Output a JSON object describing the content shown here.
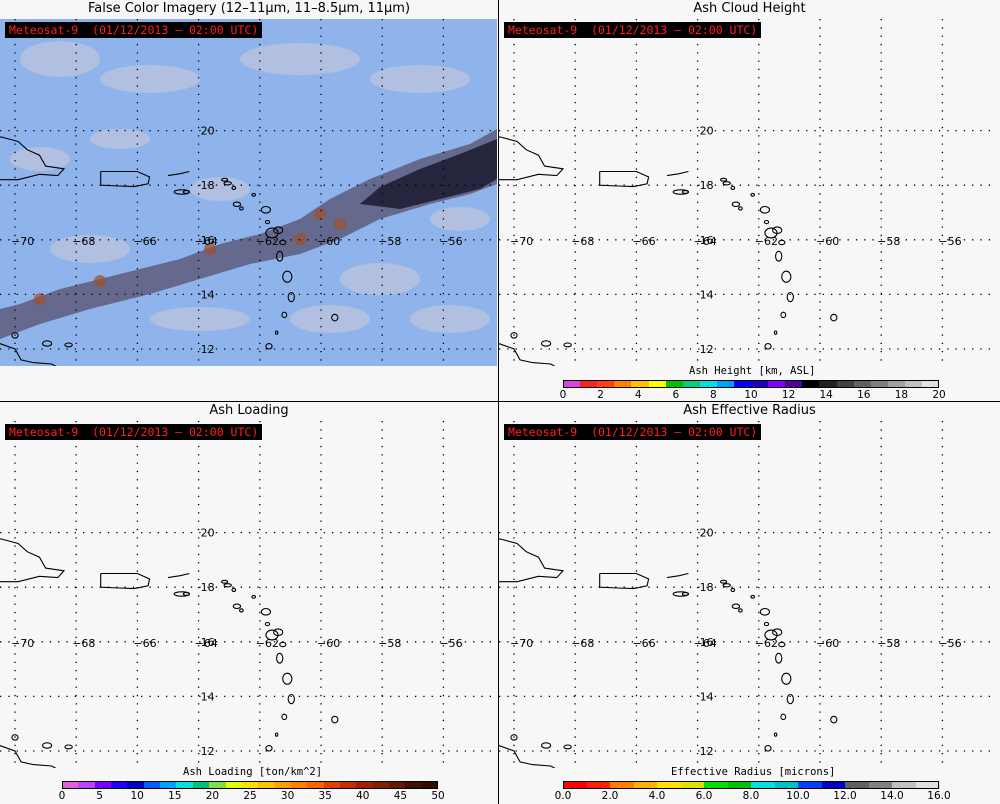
{
  "panels": [
    {
      "id": "false-color",
      "title": "False Color Imagery (12–11μm, 11–8.5μm, 11μm)",
      "satellite_label": "Meteosat-9  (01/12/2013 – 02:00 UTC)"
    },
    {
      "id": "ash-height",
      "title": "Ash Cloud Height",
      "satellite_label": "Meteosat-9  (01/12/2013 – 02:00 UTC)"
    },
    {
      "id": "ash-loading",
      "title": "Ash Loading",
      "satellite_label": "Meteosat-9  (01/12/2013 – 02:00 UTC)"
    },
    {
      "id": "ash-radius",
      "title": "Ash Effective Radius",
      "satellite_label": "Meteosat-9  (01/12/2013 – 02:00 UTC)"
    }
  ],
  "map": {
    "latitudes": [
      12,
      14,
      16,
      18,
      20
    ],
    "longitudes": [
      -70,
      -68,
      -66,
      -64,
      -62,
      -60,
      -58,
      -56
    ],
    "lat_labels": [
      "12",
      "14",
      "16",
      "18",
      "20"
    ],
    "lon_labels": [
      "−70",
      "−68",
      "−66",
      "−64",
      "−62",
      "−60",
      "−58",
      "−56"
    ]
  },
  "colorbars": {
    "height": {
      "title": "Ash Height [km, ASL]",
      "ticks": [
        "0",
        "2",
        "4",
        "6",
        "8",
        "10",
        "12",
        "14",
        "16",
        "18",
        "20"
      ],
      "colors": [
        "#e040e0",
        "#ff2020",
        "#ff4010",
        "#ff8000",
        "#ffc000",
        "#ffff00",
        "#00c000",
        "#00d080",
        "#00e0e0",
        "#00a0ff",
        "#0000ff",
        "#2000c0",
        "#8000ff",
        "#5000a0",
        "#000000",
        "#202020",
        "#404040",
        "#606060",
        "#808080",
        "#a0a0a0",
        "#c0c0c0",
        "#e0e0e0"
      ]
    },
    "loading": {
      "title": "Ash Loading [ton/km^2]",
      "ticks": [
        "0",
        "5",
        "10",
        "15",
        "20",
        "25",
        "30",
        "35",
        "40",
        "45",
        "50"
      ],
      "colors": [
        "#e060e0",
        "#c040ff",
        "#8000ff",
        "#2000ff",
        "#0000c0",
        "#0060ff",
        "#00a0ff",
        "#00e0e0",
        "#00c080",
        "#80e040",
        "#e0ff00",
        "#ffe000",
        "#ffc000",
        "#ffa000",
        "#ff8000",
        "#ff6000",
        "#e04000",
        "#c03000",
        "#a02000",
        "#802000",
        "#601800",
        "#401000",
        "#300c00"
      ]
    },
    "radius": {
      "title": "Effective Radius [microns]",
      "ticks": [
        "0.0",
        "2.0",
        "4.0",
        "6.0",
        "8.0",
        "10.0",
        "12.0",
        "14.0",
        "16.0"
      ],
      "colors": [
        "#ff0000",
        "#ff2000",
        "#ff8000",
        "#ffb000",
        "#ffe000",
        "#e0e000",
        "#00e000",
        "#00c000",
        "#00e0e0",
        "#00c0c0",
        "#0040ff",
        "#0000c0",
        "#606060",
        "#808080",
        "#c0c0c0",
        "#e0e0e0"
      ]
    }
  }
}
